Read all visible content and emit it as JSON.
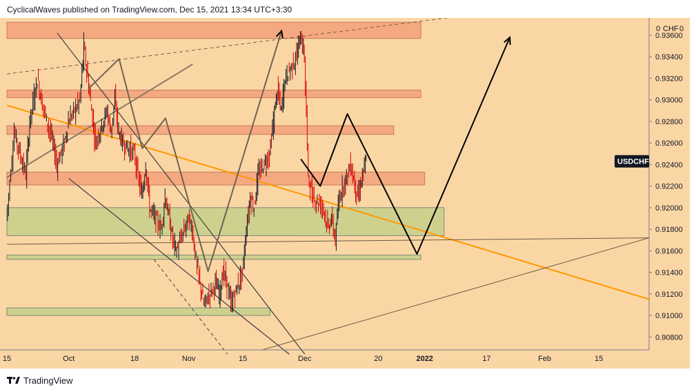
{
  "header": {
    "publisher_line": "CyclicalWaves published on TradingView.com, Dec 15, 2021 13:34 UTC+3:30"
  },
  "footer": {
    "brand": "TradingView"
  },
  "colors": {
    "background": "#fbd6a5",
    "zone_red": "#f4a47c",
    "zone_green": "#c9cf8c",
    "trendline_orange": "#ff9800",
    "candle_down": "#d50000",
    "candle_up": "#131722",
    "badge": "#131722"
  },
  "chart_data": {
    "type": "candlestick",
    "symbol": "USDCHF",
    "currency_label": "CHF",
    "currency_prefix": "0",
    "currency_suffix": "0",
    "y_ticks": [
      "0.93600",
      "0.93400",
      "0.93200",
      "0.93000",
      "0.92800",
      "0.92600",
      "0.92400",
      "0.92200",
      "0.92000",
      "0.91800",
      "0.91600",
      "0.91400",
      "0.91200",
      "0.91000",
      "0.90800"
    ],
    "ylim": [
      0.9068,
      0.9376
    ],
    "x_ticks": [
      "15",
      "Oct",
      "18",
      "Nov",
      "15",
      "Dec",
      "20",
      "2022",
      "17",
      "Feb",
      "15"
    ],
    "x_tick_dates": [
      "2021-09-15",
      "2021-10-01",
      "2021-10-18",
      "2021-11-01",
      "2021-11-15",
      "2021-12-01",
      "2021-12-20",
      "2022-01-01",
      "2022-01-17",
      "2022-02-01",
      "2022-02-15"
    ],
    "last_price_label": "USDCHF",
    "last_price": 0.9243,
    "zones": [
      {
        "kind": "resistance",
        "from": "2021-09-15",
        "to": "2021-12-31",
        "low": 0.9357,
        "high": 0.9372
      },
      {
        "kind": "resistance",
        "from": "2021-09-15",
        "to": "2021-12-31",
        "low": 0.9302,
        "high": 0.9309
      },
      {
        "kind": "resistance",
        "from": "2021-09-15",
        "to": "2021-12-24",
        "low": 0.9268,
        "high": 0.9276
      },
      {
        "kind": "resistance",
        "from": "2021-09-15",
        "to": "2022-01-01",
        "low": 0.9221,
        "high": 0.9233
      },
      {
        "kind": "support",
        "from": "2021-09-15",
        "to": "2022-01-06",
        "low": 0.9174,
        "high": 0.92
      },
      {
        "kind": "support",
        "from": "2021-09-15",
        "to": "2021-12-31",
        "low": 0.9152,
        "high": 0.9156
      },
      {
        "kind": "support",
        "from": "2021-09-15",
        "to": "2021-11-22",
        "low": 0.91,
        "high": 0.9107
      }
    ],
    "trendlines": [
      {
        "kind": "orange",
        "from": [
          "2021-09-15",
          0.9295
        ],
        "to": [
          "2022-02-28",
          0.9115
        ]
      },
      {
        "kind": "thin-rising",
        "from": [
          "2021-09-15",
          0.9166
        ],
        "to": [
          "2022-02-28",
          0.9172
        ]
      },
      {
        "kind": "thin-lower",
        "from": [
          "2021-11-20",
          0.9068
        ],
        "to": [
          "2022-02-28",
          0.9172
        ]
      },
      {
        "kind": "dashed",
        "from": [
          "2021-09-15",
          0.9324
        ],
        "to": [
          "2022-02-28",
          0.94
        ]
      },
      {
        "kind": "channel",
        "from": [
          "2021-09-28",
          0.9362
        ],
        "to": [
          "2021-12-01",
          0.9064
        ]
      },
      {
        "kind": "channel",
        "from": [
          "2021-10-01",
          0.9227
        ],
        "to": [
          "2021-11-27",
          0.9064
        ]
      },
      {
        "kind": "gray",
        "from": [
          "2021-09-15",
          0.9228
        ],
        "to": [
          "2021-11-02",
          0.9333
        ]
      },
      {
        "kind": "gray-dashed",
        "from": [
          "2021-10-23",
          0.9152
        ],
        "to": [
          "2021-11-11",
          0.9064
        ]
      }
    ],
    "wave_projection": [
      [
        "2021-11-30",
        0.9245
      ],
      [
        "2021-12-05",
        0.922
      ],
      [
        "2021-12-12",
        0.9287
      ],
      [
        "2021-12-30",
        0.9157
      ],
      [
        "2022-01-23",
        0.9358
      ]
    ],
    "gray_wave": [
      [
        "2021-10-06",
        0.931
      ],
      [
        "2021-10-14",
        0.9338
      ],
      [
        "2021-10-20",
        0.9255
      ],
      [
        "2021-10-26",
        0.9283
      ],
      [
        "2021-11-06",
        0.9141
      ],
      [
        "2021-11-25",
        0.9364
      ]
    ],
    "price_path": [
      [
        "2021-09-15",
        0.919
      ],
      [
        "2021-09-17",
        0.927
      ],
      [
        "2021-09-20",
        0.923
      ],
      [
        "2021-09-21",
        0.928
      ],
      [
        "2021-09-23",
        0.932
      ],
      [
        "2021-09-24",
        0.93
      ],
      [
        "2021-09-27",
        0.926
      ],
      [
        "2021-09-28",
        0.924
      ],
      [
        "2021-09-30",
        0.926
      ],
      [
        "2021-10-01",
        0.928
      ],
      [
        "2021-10-04",
        0.93
      ],
      [
        "2021-10-05",
        0.935
      ],
      [
        "2021-10-06",
        0.932
      ],
      [
        "2021-10-07",
        0.929
      ],
      [
        "2021-10-08",
        0.926
      ],
      [
        "2021-10-11",
        0.929
      ],
      [
        "2021-10-12",
        0.927
      ],
      [
        "2021-10-13",
        0.93
      ],
      [
        "2021-10-14",
        0.927
      ],
      [
        "2021-10-15",
        0.926
      ],
      [
        "2021-10-18",
        0.925
      ],
      [
        "2021-10-19",
        0.923
      ],
      [
        "2021-10-20",
        0.921
      ],
      [
        "2021-10-21",
        0.924
      ],
      [
        "2021-10-22",
        0.92
      ],
      [
        "2021-10-25",
        0.918
      ],
      [
        "2021-10-26",
        0.921
      ],
      [
        "2021-10-27",
        0.919
      ],
      [
        "2021-10-28",
        0.917
      ],
      [
        "2021-10-29",
        0.916
      ],
      [
        "2021-11-01",
        0.919
      ],
      [
        "2021-11-02",
        0.918
      ],
      [
        "2021-11-03",
        0.915
      ],
      [
        "2021-11-04",
        0.913
      ],
      [
        "2021-11-05",
        0.911
      ],
      [
        "2021-11-08",
        0.913
      ],
      [
        "2021-11-09",
        0.912
      ],
      [
        "2021-11-10",
        0.914
      ],
      [
        "2021-11-11",
        0.913
      ],
      [
        "2021-11-12",
        0.911
      ],
      [
        "2021-11-15",
        0.914
      ],
      [
        "2021-11-16",
        0.918
      ],
      [
        "2021-11-17",
        0.921
      ],
      [
        "2021-11-18",
        0.92
      ],
      [
        "2021-11-19",
        0.923
      ],
      [
        "2021-11-22",
        0.925
      ],
      [
        "2021-11-23",
        0.928
      ],
      [
        "2021-11-24",
        0.931
      ],
      [
        "2021-11-25",
        0.929
      ],
      [
        "2021-11-26",
        0.932
      ],
      [
        "2021-11-29",
        0.934
      ],
      [
        "2021-11-30",
        0.936
      ],
      [
        "2021-12-01",
        0.934
      ],
      [
        "2021-12-02",
        0.923
      ],
      [
        "2021-12-03",
        0.921
      ],
      [
        "2021-12-06",
        0.92
      ],
      [
        "2021-12-07",
        0.918
      ],
      [
        "2021-12-08",
        0.919
      ],
      [
        "2021-12-09",
        0.917
      ],
      [
        "2021-12-10",
        0.921
      ],
      [
        "2021-12-13",
        0.924
      ],
      [
        "2021-12-14",
        0.922
      ],
      [
        "2021-12-15",
        0.921
      ],
      [
        "2021-12-16",
        0.923
      ],
      [
        "2021-12-17",
        0.9243
      ]
    ]
  }
}
